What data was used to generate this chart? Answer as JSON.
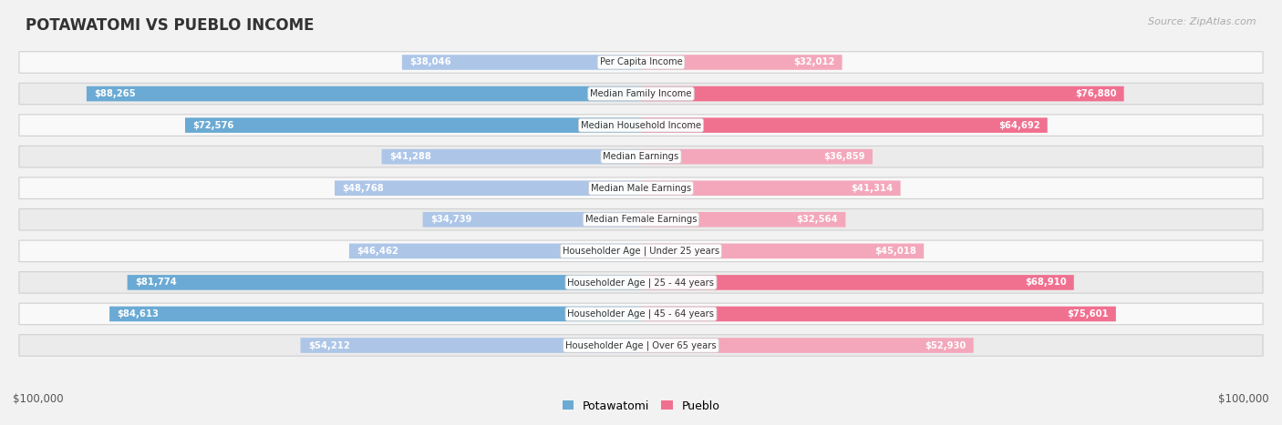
{
  "title": "POTAWATOMI VS PUEBLO INCOME",
  "source": "Source: ZipAtlas.com",
  "categories": [
    "Per Capita Income",
    "Median Family Income",
    "Median Household Income",
    "Median Earnings",
    "Median Male Earnings",
    "Median Female Earnings",
    "Householder Age | Under 25 years",
    "Householder Age | 25 - 44 years",
    "Householder Age | 45 - 64 years",
    "Householder Age | Over 65 years"
  ],
  "potawatomi": [
    38046,
    88265,
    72576,
    41288,
    48768,
    34739,
    46462,
    81774,
    84613,
    54212
  ],
  "pueblo": [
    32012,
    76880,
    64692,
    36859,
    41314,
    32564,
    45018,
    68910,
    75601,
    52930
  ],
  "potawatomi_labels": [
    "$38,046",
    "$88,265",
    "$72,576",
    "$41,288",
    "$48,768",
    "$34,739",
    "$46,462",
    "$81,774",
    "$84,613",
    "$54,212"
  ],
  "pueblo_labels": [
    "$32,012",
    "$76,880",
    "$64,692",
    "$36,859",
    "$41,314",
    "$32,564",
    "$45,018",
    "$68,910",
    "$75,601",
    "$52,930"
  ],
  "max_val": 100000,
  "potawatomi_color_light": "#adc6e8",
  "potawatomi_color_dark": "#6aaad4",
  "pueblo_color_light": "#f4a7bb",
  "pueblo_color_dark": "#f07090",
  "bg_color": "#f2f2f2",
  "row_bg_even": "#f9f9f9",
  "row_bg_odd": "#ebebeb",
  "label_white": "#ffffff",
  "label_dark": "#555555",
  "legend_potawatomi": "Potawatomi",
  "legend_pueblo": "Pueblo",
  "inside_threshold": 20000
}
